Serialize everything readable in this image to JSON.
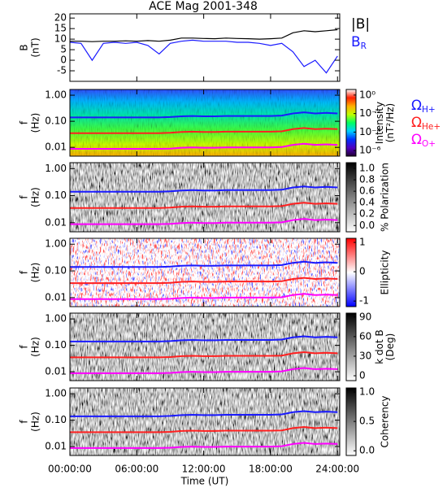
{
  "chart_data": {
    "title": "ACE Mag 2001-348",
    "x": [
      0,
      1,
      2,
      3,
      4,
      5,
      6,
      7,
      8,
      9,
      10,
      11,
      12,
      13,
      14,
      15,
      16,
      17,
      18,
      19,
      20,
      21,
      22,
      23,
      24
    ],
    "xlim": [
      0,
      24.2
    ],
    "xticks": [
      {
        "value": 0,
        "label": "00:00:00"
      },
      {
        "value": 6,
        "label": "06:00:00"
      },
      {
        "value": 12,
        "label": "12:00:00"
      },
      {
        "value": 18,
        "label": "18:00:00"
      },
      {
        "value": 24,
        "label": "24:00:00"
      }
    ],
    "xlabel": "Time (UT)",
    "gyrofrequencies": [
      {
        "name": "Ω",
        "name_sub": "H+",
        "color": "#1a1aff",
        "values": [
          0.14,
          0.14,
          0.14,
          0.14,
          0.14,
          0.14,
          0.14,
          0.14,
          0.14,
          0.145,
          0.155,
          0.16,
          0.155,
          0.155,
          0.16,
          0.16,
          0.16,
          0.16,
          0.16,
          0.165,
          0.2,
          0.22,
          0.2,
          0.21,
          0.2
        ]
      },
      {
        "name": "Ω",
        "name_sub": "He+",
        "color": "#ff2020",
        "values": [
          0.035,
          0.035,
          0.035,
          0.035,
          0.035,
          0.035,
          0.035,
          0.035,
          0.035,
          0.036,
          0.039,
          0.04,
          0.039,
          0.039,
          0.04,
          0.04,
          0.04,
          0.04,
          0.04,
          0.041,
          0.05,
          0.055,
          0.05,
          0.052,
          0.05
        ]
      },
      {
        "name": "Ω",
        "name_sub": "O+",
        "color": "#ff00ff",
        "values": [
          0.0088,
          0.0088,
          0.0088,
          0.0088,
          0.0088,
          0.0088,
          0.0088,
          0.0088,
          0.0088,
          0.009,
          0.0097,
          0.01,
          0.0097,
          0.0097,
          0.01,
          0.01,
          0.01,
          0.01,
          0.01,
          0.0103,
          0.0125,
          0.0138,
          0.0125,
          0.013,
          0.0125
        ]
      }
    ],
    "panels": [
      {
        "type": "line",
        "ylabel": [
          "B",
          "(nT)"
        ],
        "ylim": [
          -10,
          22
        ],
        "yticks": [
          -5,
          0,
          5,
          10,
          15,
          20
        ],
        "series": [
          {
            "name": "|B|",
            "color": "#000000",
            "values": [
              9,
              9,
              8.8,
              9,
              9,
              9.2,
              9,
              9.3,
              9,
              9.5,
              10.5,
              10.5,
              10.3,
              10.2,
              10.5,
              10.3,
              10.2,
              10,
              10.2,
              10.5,
              13,
              14,
              13.5,
              14,
              14.5
            ]
          },
          {
            "name": "B",
            "name_sub": "R",
            "color": "#1a1aff",
            "values": [
              8.5,
              8,
              0,
              8,
              8.5,
              8,
              8.5,
              7,
              3,
              8,
              9,
              9.5,
              9,
              9,
              9,
              8.5,
              8.5,
              8,
              7,
              8,
              4,
              -3,
              0,
              -6,
              2
            ]
          }
        ]
      },
      {
        "type": "spectrogram",
        "texture": "intensity",
        "ylabel": [
          "f",
          "(Hz)"
        ],
        "ylim": [
          0.0046,
          1.66
        ],
        "log": true,
        "yticks": [
          {
            "value": 0.01,
            "label": "0.01"
          },
          {
            "value": 0.1,
            "label": "0.10"
          },
          {
            "value": 1,
            "label": "1.00"
          }
        ],
        "colorbar": {
          "label": [
            "Intensity",
            "(nT²/Hz)"
          ],
          "log": true,
          "clim": [
            2.5e-07,
            4
          ],
          "colors": [
            "#200030",
            "#5000c0",
            "#0030ff",
            "#00d0ff",
            "#00ff60",
            "#c0ff00",
            "#ffb000",
            "#ff2000",
            "#ffffff"
          ],
          "ticks": [
            {
              "value": 1e-06,
              "label": "10⁻⁶"
            },
            {
              "value": 0.0001,
              "label": "10⁻⁴"
            },
            {
              "value": 0.01,
              "label": "10⁻²"
            },
            {
              "value": 1,
              "label": "10⁰"
            }
          ]
        },
        "gyro_legend": true
      },
      {
        "type": "spectrogram",
        "texture": "gray",
        "ylabel": [
          "f",
          "(Hz)"
        ],
        "ylim": [
          0.0046,
          1.66
        ],
        "log": true,
        "yticks": [
          {
            "value": 0.01,
            "label": "0.01"
          },
          {
            "value": 0.1,
            "label": "0.10"
          },
          {
            "value": 1,
            "label": "1.00"
          }
        ],
        "colorbar": {
          "label": [
            "% Polarization"
          ],
          "log": false,
          "clim": [
            -0.11,
            1.1
          ],
          "colors": [
            "#ffffff",
            "#000000"
          ],
          "ticks": [
            {
              "value": 0,
              "label": "0.0"
            },
            {
              "value": 0.2,
              "label": "0.2"
            },
            {
              "value": 0.4,
              "label": "0.4"
            },
            {
              "value": 0.6,
              "label": "0.6"
            },
            {
              "value": 0.8,
              "label": "0.8"
            },
            {
              "value": 1,
              "label": "1.0"
            }
          ]
        }
      },
      {
        "type": "spectrogram",
        "texture": "diverging",
        "ylabel": [
          "f",
          "(Hz)"
        ],
        "ylim": [
          0.0046,
          1.66
        ],
        "log": true,
        "yticks": [
          {
            "value": 0.01,
            "label": "0.01"
          },
          {
            "value": 0.1,
            "label": "0.10"
          },
          {
            "value": 1,
            "label": "1.00"
          }
        ],
        "colorbar": {
          "label": [
            "Ellipticity"
          ],
          "log": false,
          "clim": [
            -1.19,
            1.14
          ],
          "colors": [
            "#0000ff",
            "#ffffff",
            "#ff0000"
          ],
          "ticks": [
            -1,
            0,
            1
          ]
        }
      },
      {
        "type": "spectrogram",
        "texture": "gray",
        "ylabel": [
          "f",
          "(Hz)"
        ],
        "ylim": [
          0.0046,
          1.66
        ],
        "log": true,
        "yticks": [
          {
            "value": 0.01,
            "label": "0.01"
          },
          {
            "value": 0.1,
            "label": "0.10"
          },
          {
            "value": 1,
            "label": "1.00"
          }
        ],
        "colorbar": {
          "label": [
            "k dot B",
            "(Deg)"
          ],
          "log": false,
          "clim": [
            -7.5,
            96
          ],
          "colors": [
            "#ffffff",
            "#000000"
          ],
          "ticks": [
            0,
            30,
            60,
            90
          ]
        }
      },
      {
        "type": "spectrogram",
        "texture": "gray",
        "ylabel": [
          "f",
          "(Hz)"
        ],
        "ylim": [
          0.0046,
          1.66
        ],
        "log": true,
        "yticks": [
          {
            "value": 0.01,
            "label": "0.01"
          },
          {
            "value": 0.1,
            "label": "0.10"
          },
          {
            "value": 1,
            "label": "1.00"
          }
        ],
        "colorbar": {
          "label": [
            "Coherency"
          ],
          "log": false,
          "clim": [
            -0.08,
            1.07
          ],
          "colors": [
            "#ffffff",
            "#000000"
          ],
          "ticks": [
            {
              "value": 0,
              "label": "0.0"
            },
            {
              "value": 0.5,
              "label": "0.5"
            },
            {
              "value": 1,
              "label": "1.0"
            }
          ]
        }
      }
    ]
  }
}
